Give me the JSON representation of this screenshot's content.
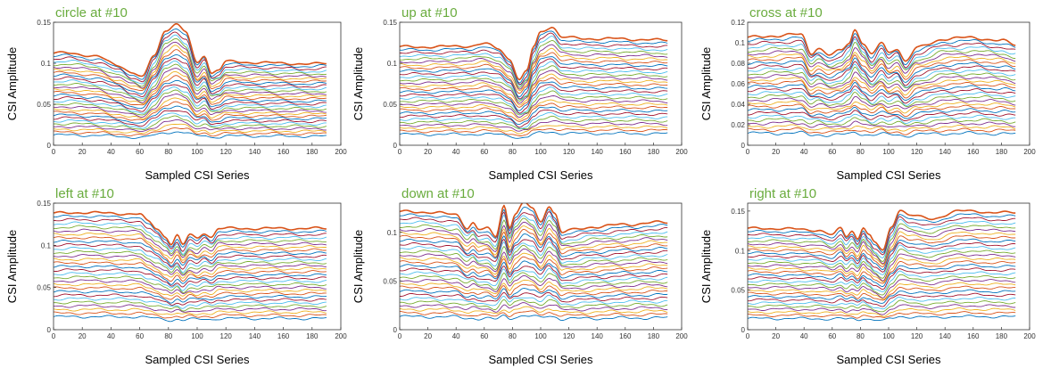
{
  "theme": {
    "title_color": "#6aac3e",
    "axis_color": "#333333"
  },
  "chart_data": [
    {
      "type": "line",
      "title": "circle at #10",
      "xlabel": "Sampled CSI Series",
      "ylabel": "CSI Amplitude",
      "xlim": [
        0,
        200
      ],
      "ylim": [
        0,
        0.15
      ],
      "xticks": [
        "0",
        "20",
        "40",
        "60",
        "80",
        "100",
        "120",
        "140",
        "160",
        "180",
        "200"
      ],
      "yticks": [
        "0",
        "0.05",
        "0.1",
        "0.15"
      ],
      "series_count": 30,
      "envelope": {
        "x": [
          0,
          10,
          30,
          45,
          55,
          62,
          70,
          78,
          85,
          92,
          100,
          105,
          110,
          115,
          120,
          140,
          160,
          180,
          190
        ],
        "y_max": [
          0.112,
          0.113,
          0.108,
          0.098,
          0.088,
          0.083,
          0.11,
          0.14,
          0.148,
          0.138,
          0.1,
          0.11,
          0.088,
          0.092,
          0.102,
          0.101,
          0.1,
          0.099,
          0.1
        ]
      }
    },
    {
      "type": "line",
      "title": "up at #10",
      "xlabel": "Sampled CSI Series",
      "ylabel": "CSI Amplitude",
      "xlim": [
        0,
        200
      ],
      "ylim": [
        0,
        0.15
      ],
      "xticks": [
        "0",
        "20",
        "40",
        "60",
        "80",
        "100",
        "120",
        "140",
        "160",
        "180",
        "200"
      ],
      "yticks": [
        "0",
        "0.05",
        "0.1",
        "0.15"
      ],
      "series_count": 30,
      "envelope": {
        "x": [
          0,
          20,
          50,
          60,
          70,
          78,
          85,
          90,
          95,
          100,
          108,
          115,
          130,
          150,
          170,
          190
        ],
        "y_max": [
          0.12,
          0.12,
          0.121,
          0.124,
          0.118,
          0.105,
          0.08,
          0.09,
          0.12,
          0.138,
          0.145,
          0.132,
          0.13,
          0.13,
          0.129,
          0.128
        ]
      }
    },
    {
      "type": "line",
      "title": "cross at #10",
      "xlabel": "Sampled CSI Series",
      "ylabel": "CSI Amplitude",
      "xlim": [
        0,
        200
      ],
      "ylim": [
        0,
        0.12
      ],
      "xticks": [
        "0",
        "20",
        "40",
        "60",
        "80",
        "100",
        "120",
        "140",
        "160",
        "180",
        "200"
      ],
      "yticks": [
        "0",
        "0.02",
        "0.04",
        "0.06",
        "0.08",
        "0.1",
        "0.12"
      ],
      "series_count": 30,
      "envelope": {
        "x": [
          0,
          20,
          38,
          45,
          50,
          58,
          66,
          72,
          76,
          82,
          88,
          95,
          100,
          106,
          112,
          120,
          140,
          160,
          180,
          190
        ],
        "y_max": [
          0.105,
          0.107,
          0.108,
          0.09,
          0.095,
          0.088,
          0.092,
          0.1,
          0.113,
          0.1,
          0.088,
          0.1,
          0.09,
          0.095,
          0.082,
          0.095,
          0.104,
          0.105,
          0.102,
          0.098
        ]
      }
    },
    {
      "type": "line",
      "title": "left at #10",
      "xlabel": "Sampled CSI Series",
      "ylabel": "CSI Amplitude",
      "xlim": [
        0,
        200
      ],
      "ylim": [
        0,
        0.15
      ],
      "xticks": [
        "0",
        "20",
        "40",
        "60",
        "80",
        "100",
        "120",
        "140",
        "160",
        "180",
        "200"
      ],
      "yticks": [
        "0",
        "0.05",
        "0.1",
        "0.15"
      ],
      "series_count": 30,
      "envelope": {
        "x": [
          0,
          20,
          40,
          60,
          66,
          72,
          78,
          82,
          86,
          90,
          95,
          100,
          105,
          110,
          115,
          120,
          140,
          160,
          180,
          190
        ],
        "y_max": [
          0.138,
          0.139,
          0.138,
          0.137,
          0.128,
          0.12,
          0.11,
          0.102,
          0.112,
          0.1,
          0.113,
          0.108,
          0.115,
          0.11,
          0.12,
          0.12,
          0.12,
          0.12,
          0.12,
          0.12
        ]
      }
    },
    {
      "type": "line",
      "title": "down at #10",
      "xlabel": "Sampled CSI Series",
      "ylabel": "CSI Amplitude",
      "xlim": [
        0,
        200
      ],
      "ylim": [
        0,
        0.13
      ],
      "xticks": [
        "0",
        "20",
        "40",
        "60",
        "80",
        "100",
        "120",
        "140",
        "160",
        "180",
        "200"
      ],
      "yticks": [
        "0",
        "0.05",
        "0.1"
      ],
      "series_count": 30,
      "envelope": {
        "x": [
          0,
          20,
          40,
          48,
          52,
          56,
          62,
          68,
          74,
          78,
          82,
          88,
          94,
          100,
          106,
          110,
          115,
          120,
          140,
          160,
          180,
          190
        ],
        "y_max": [
          0.121,
          0.121,
          0.118,
          0.105,
          0.11,
          0.103,
          0.104,
          0.095,
          0.128,
          0.105,
          0.12,
          0.13,
          0.125,
          0.11,
          0.128,
          0.12,
          0.1,
          0.102,
          0.106,
          0.108,
          0.11,
          0.11
        ]
      }
    },
    {
      "type": "line",
      "title": "right at #10",
      "xlabel": "Sampled CSI Series",
      "ylabel": "CSI Amplitude",
      "xlim": [
        0,
        200
      ],
      "ylim": [
        0,
        0.16
      ],
      "xticks": [
        "0",
        "20",
        "40",
        "60",
        "80",
        "100",
        "120",
        "140",
        "160",
        "180",
        "200"
      ],
      "yticks": [
        "0",
        "0.05",
        "0.1",
        "0.15"
      ],
      "series_count": 30,
      "envelope": {
        "x": [
          0,
          20,
          50,
          60,
          66,
          70,
          74,
          78,
          82,
          86,
          90,
          96,
          102,
          108,
          115,
          130,
          150,
          160,
          175,
          190
        ],
        "y_max": [
          0.128,
          0.128,
          0.126,
          0.12,
          0.128,
          0.118,
          0.125,
          0.115,
          0.13,
          0.12,
          0.11,
          0.1,
          0.13,
          0.152,
          0.145,
          0.14,
          0.15,
          0.15,
          0.148,
          0.148
        ]
      }
    }
  ]
}
